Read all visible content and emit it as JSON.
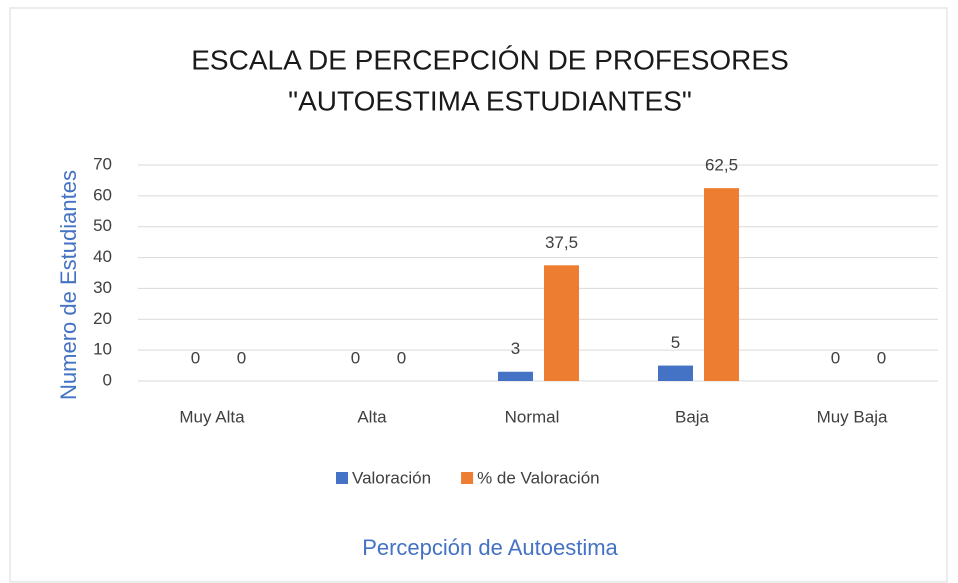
{
  "chart_data": {
    "type": "bar",
    "title": [
      "ESCALA DE PERCEPCIÓN DE PROFESORES",
      "\"AUTOESTIMA ESTUDIANTES\""
    ],
    "y_label": "Numero de Estudiantes",
    "x_label": "Percepción de Autoestima",
    "categories": [
      "Muy Alta",
      "Alta",
      "Normal",
      "Baja",
      "Muy Baja"
    ],
    "series": [
      {
        "name": "Valoración",
        "color": "#4472c4",
        "values": [
          0,
          0,
          3,
          5,
          0
        ]
      },
      {
        "name": "% de Valoración",
        "color": "#ed7d31",
        "values": [
          0,
          0,
          37.5,
          62.5,
          0
        ],
        "value_labels": [
          "0",
          "0",
          "37,5",
          "62,5",
          "0"
        ]
      }
    ],
    "ylim": [
      0,
      70
    ],
    "yticks": [
      0,
      10,
      20,
      30,
      40,
      50,
      60,
      70
    ],
    "grid": true,
    "legend": "bottom"
  }
}
